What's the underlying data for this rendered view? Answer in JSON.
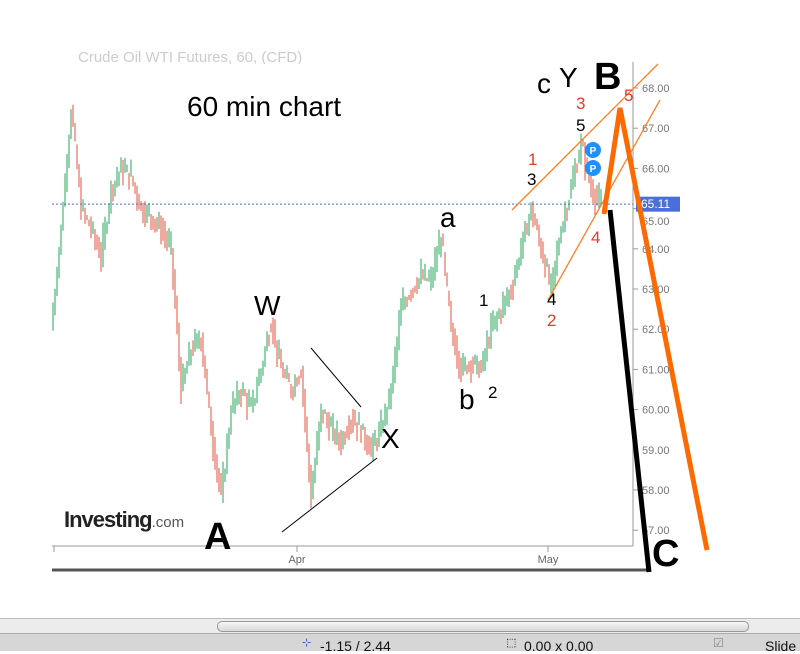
{
  "chart_data": {
    "type": "candlestick",
    "title": "60 min chart",
    "header_faded": "Crude Oil WTI Futures, 60, (CFD)",
    "brand": "Investing",
    "brand_suffix": ".com",
    "x_ticks": [
      "Apr",
      "May"
    ],
    "y_ticks": [
      "68.00",
      "67.00",
      "66.00",
      "65.00",
      "64.00",
      "63.00",
      "62.00",
      "61.00",
      "60.00",
      "59.00",
      "58.00",
      "57.00"
    ],
    "ylim": [
      56.7,
      68.5
    ],
    "last_price": 65.11,
    "last_price_label": "65.11",
    "grid": false,
    "colors": {
      "up": "#26a65b",
      "down": "#e0533f",
      "price_line": "#4a6fd8",
      "projection": "#ff6a00",
      "channel": "#ff7f27"
    },
    "values": [
      62.0,
      64.5,
      67.5,
      65.0,
      64.5,
      63.8,
      65.5,
      66.0,
      65.8,
      65.0,
      64.8,
      64.5,
      64.0,
      60.5,
      61.5,
      61.8,
      59.5,
      57.8,
      60.0,
      60.5,
      60.0,
      61.0,
      62.2,
      61.0,
      60.5,
      61.0,
      57.8,
      60.0,
      59.5,
      59.2,
      59.8,
      59.5,
      59.0,
      59.5,
      60.5,
      62.5,
      63.0,
      63.3,
      63.2,
      64.3,
      62.0,
      61.0,
      61.2,
      61.0,
      62.0,
      62.5,
      63.0,
      64.0,
      65.0,
      64.0,
      63.0,
      64.5,
      65.5,
      66.6,
      65.5,
      65.1
    ],
    "wave_labels": {
      "A": "A",
      "W": "W",
      "X": "X",
      "a": "a",
      "b": "b",
      "c": "c",
      "Y": "Y",
      "B": "B",
      "C": "C",
      "n1": "1",
      "n2": "2",
      "n3": "3",
      "n4": "4",
      "n5": "5",
      "r1": "1",
      "r2": "2",
      "r3": "3",
      "r4": "4",
      "r5": "5"
    },
    "markers": [
      "P",
      "P"
    ]
  },
  "statusbar": {
    "position": "-1.15 / 2.44",
    "size": "0.00 x 0.00",
    "slide": "Slide"
  }
}
